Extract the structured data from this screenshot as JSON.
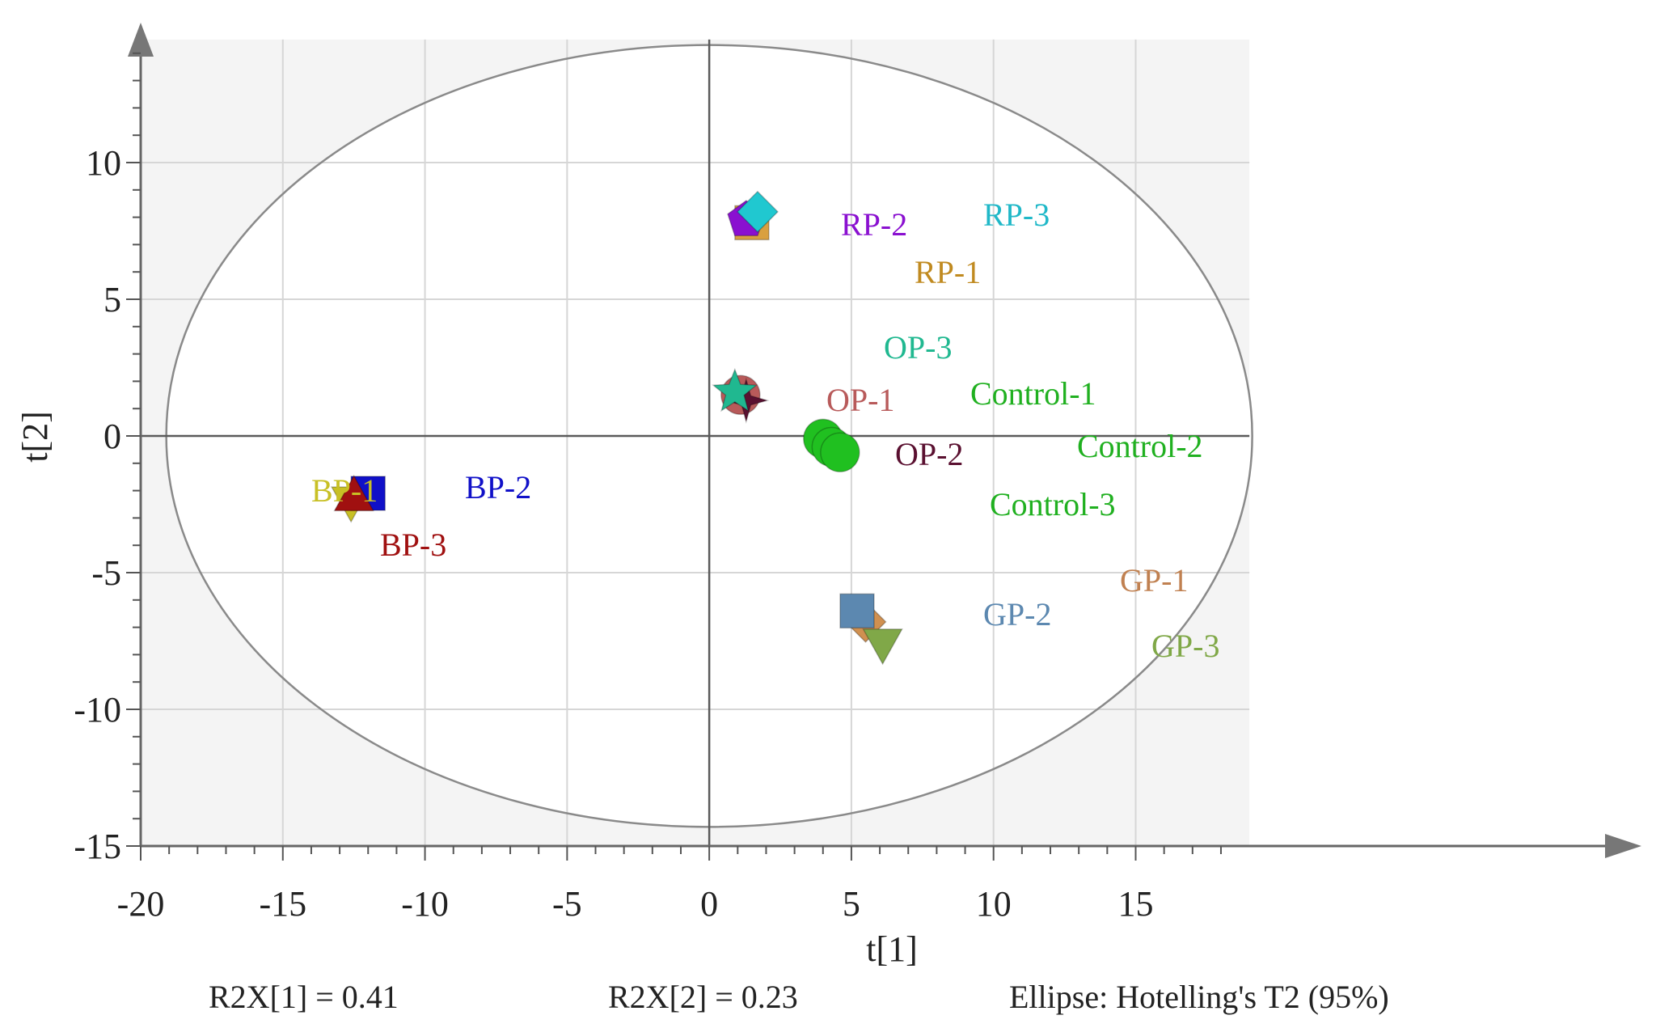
{
  "chart_data": {
    "type": "scatter",
    "title": "",
    "xlabel": "t[1]",
    "ylabel": "t[2]",
    "xlim": [
      -20,
      19
    ],
    "ylim": [
      -15,
      14.5
    ],
    "x_ticks": [
      -20,
      -15,
      -10,
      -5,
      0,
      5,
      10,
      15
    ],
    "y_ticks": [
      -15,
      -10,
      -5,
      0,
      5,
      10
    ],
    "x_tick_labels": [
      "-20",
      "-15",
      "-10",
      "-5",
      "0",
      "5",
      "10",
      "15"
    ],
    "y_tick_labels": [
      "-15",
      "-10",
      "-5",
      "0",
      "5",
      "10"
    ],
    "grid": true,
    "ellipse": {
      "center_x": 0,
      "center_y": 0,
      "radius_x": 19.1,
      "radius_y": 14.3
    },
    "footer": {
      "r2x1": "R2X[1] = 0.41",
      "r2x2": "R2X[2] = 0.23",
      "ellipse_label": "Ellipse: Hotelling's T2 (95%)"
    },
    "points": [
      {
        "label": "BP-1",
        "x": -12.6,
        "y": -2.4,
        "marker": "triangle-down",
        "color": "#c8c025"
      },
      {
        "label": "BP-2",
        "x": -12.0,
        "y": -2.1,
        "marker": "square",
        "color": "#1010c8"
      },
      {
        "label": "BP-3",
        "x": -12.5,
        "y": -2.2,
        "marker": "triangle-up",
        "color": "#a01010"
      },
      {
        "label": "RP-1",
        "x": 1.5,
        "y": 7.8,
        "marker": "square",
        "color": "#d9a040"
      },
      {
        "label": "RP-2",
        "x": 1.3,
        "y": 7.9,
        "marker": "pentagon",
        "color": "#8a10d0"
      },
      {
        "label": "RP-3",
        "x": 1.7,
        "y": 8.2,
        "marker": "diamond",
        "color": "#20c8d0"
      },
      {
        "label": "OP-1",
        "x": 1.1,
        "y": 1.5,
        "marker": "circle",
        "color": "#b85a5a"
      },
      {
        "label": "OP-2",
        "x": 1.3,
        "y": 1.3,
        "marker": "star4",
        "color": "#5a1030"
      },
      {
        "label": "OP-3",
        "x": 0.9,
        "y": 1.6,
        "marker": "star5",
        "color": "#20b890"
      },
      {
        "label": "Control-1",
        "x": 4.0,
        "y": -0.1,
        "marker": "circle",
        "color": "#20c020"
      },
      {
        "label": "Control-2",
        "x": 4.3,
        "y": -0.4,
        "marker": "circle",
        "color": "#20c020"
      },
      {
        "label": "Control-3",
        "x": 4.6,
        "y": -0.6,
        "marker": "circle",
        "color": "#20c020"
      },
      {
        "label": "GP-1",
        "x": 5.5,
        "y": -6.8,
        "marker": "diamond",
        "color": "#d09050"
      },
      {
        "label": "GP-2",
        "x": 5.2,
        "y": -6.4,
        "marker": "square",
        "color": "#5c88b0"
      },
      {
        "label": "GP-3",
        "x": 6.1,
        "y": -7.6,
        "marker": "triangle-down",
        "color": "#80a848"
      }
    ],
    "label_colors": {
      "BP-1": "#c8c025",
      "BP-2": "#1010c8",
      "BP-3": "#a01010",
      "RP-1": "#c08a20",
      "RP-2": "#8a10d0",
      "RP-3": "#20b8c8",
      "OP-1": "#b85a5a",
      "OP-2": "#5a1030",
      "OP-3": "#20b890",
      "Control-1": "#20b020",
      "Control-2": "#20b020",
      "Control-3": "#20b020",
      "GP-1": "#c08050",
      "GP-2": "#5c88b0",
      "GP-3": "#80a848"
    }
  }
}
